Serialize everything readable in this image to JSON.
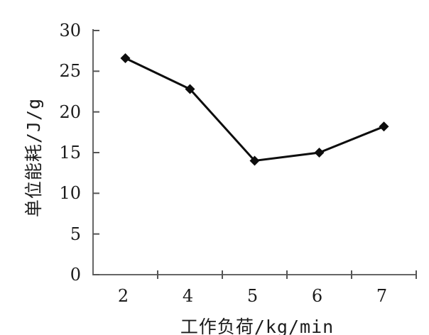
{
  "figure": {
    "background": "#ffffff",
    "text_color": "#1b1b1b",
    "axis_color": "#666666",
    "tick_color": "#555555",
    "series_color": "#0d0d0d"
  },
  "chart_data": {
    "type": "line",
    "title": "",
    "xlabel": "工作负荷/kg/min",
    "ylabel": "单位能耗/J/g",
    "categories": [
      "2",
      "4",
      "5",
      "6",
      "7"
    ],
    "values": [
      26.6,
      22.8,
      14,
      15,
      18.2
    ],
    "ylim": [
      0,
      30
    ],
    "y_ticks": [
      0,
      5,
      10,
      15,
      20,
      25,
      30
    ],
    "y_tick_direction": "inside",
    "x_tick_positions": "category-boundaries",
    "x_axis": "categorical-equal-spacing",
    "marker": "filled-diamond",
    "grid": false,
    "legend": "none"
  }
}
